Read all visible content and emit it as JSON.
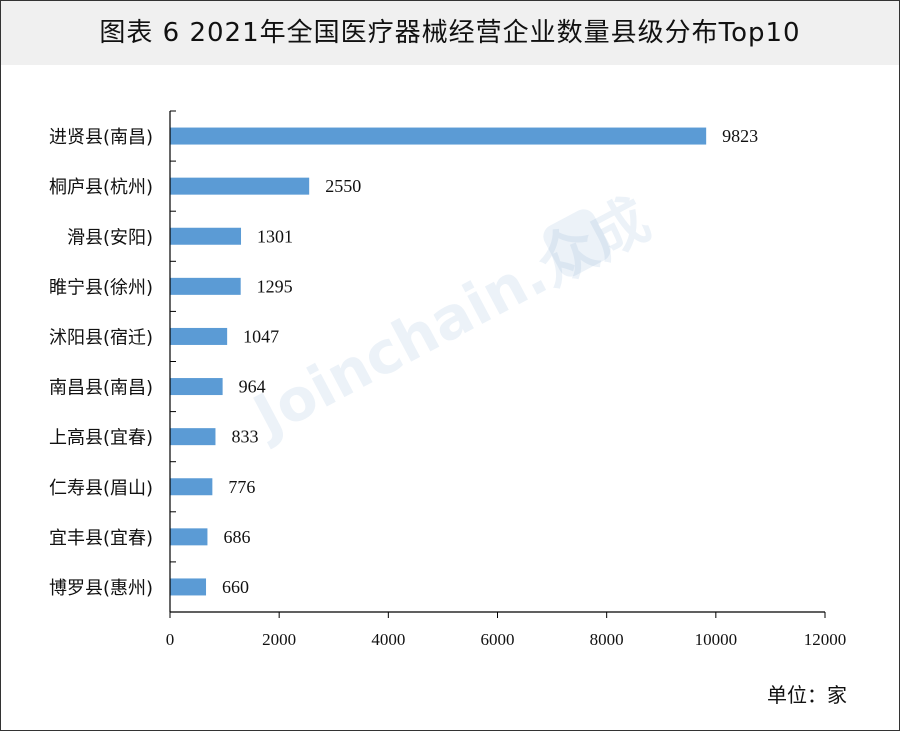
{
  "title": "图表 6  2021年全国医疗器械经营企业数量县级分布Top10",
  "unit_label": "单位：家",
  "watermark": "Joinchain.众成",
  "colors": {
    "bar": "#5b9bd5",
    "axis": "#000000",
    "text": "#111111"
  },
  "chart_data": {
    "type": "bar",
    "orientation": "horizontal",
    "categories": [
      "进贤县(南昌)",
      "桐庐县(杭州)",
      "滑县(安阳)",
      "睢宁县(徐州)",
      "沭阳县(宿迁)",
      "南昌县(南昌)",
      "上高县(宜春)",
      "仁寿县(眉山)",
      "宜丰县(宜春)",
      "博罗县(惠州)"
    ],
    "values": [
      9823,
      2550,
      1301,
      1295,
      1047,
      964,
      833,
      776,
      686,
      660
    ],
    "xlim": [
      0,
      12000
    ],
    "xticks": [
      0,
      2000,
      4000,
      6000,
      8000,
      10000,
      12000
    ],
    "data_labels": true,
    "grid": false,
    "legend": "none"
  }
}
